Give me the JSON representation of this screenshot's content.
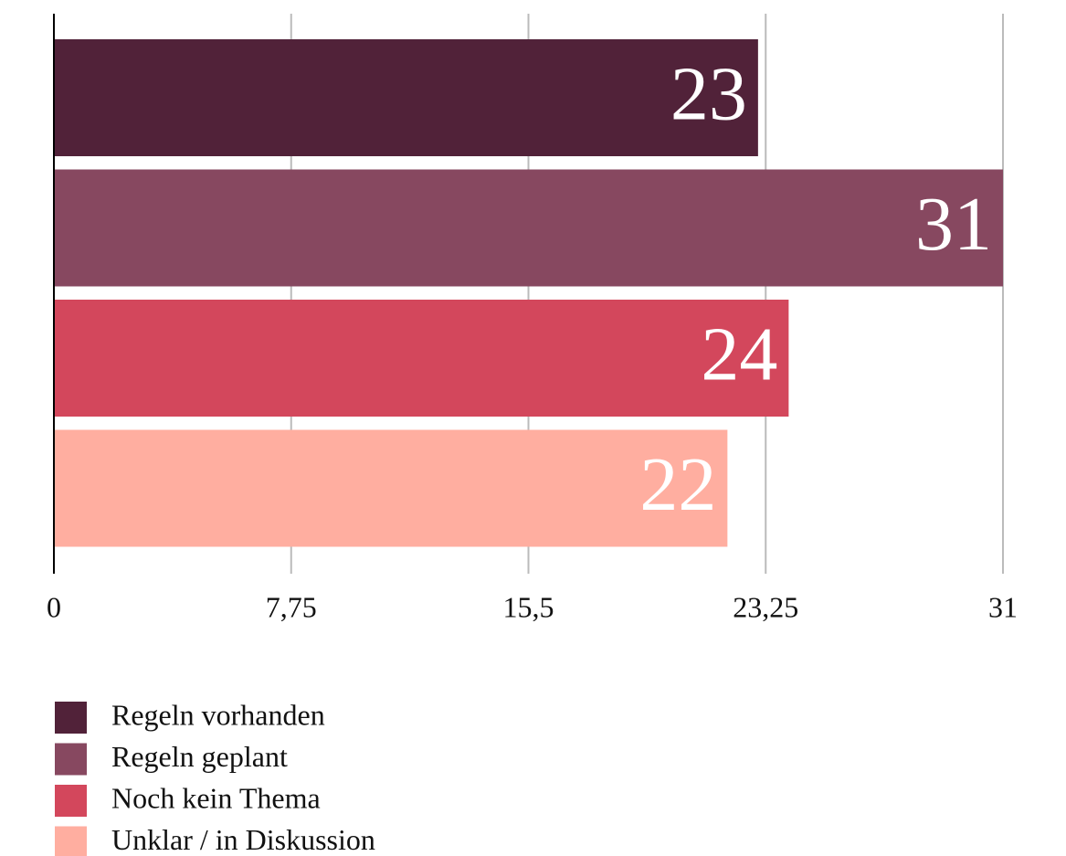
{
  "chart_data": {
    "type": "bar",
    "orientation": "horizontal",
    "series": [
      {
        "name": "Regeln vorhanden",
        "color": "#512239",
        "values": [
          23
        ]
      },
      {
        "name": "Regeln geplant",
        "color": "#874860",
        "values": [
          31
        ]
      },
      {
        "name": "Noch kein Thema",
        "color": "#d3475c",
        "values": [
          24
        ]
      },
      {
        "name": "Unklar / in Diskussion",
        "color": "#ffaea0",
        "values": [
          22
        ]
      }
    ],
    "xlim": [
      0,
      31
    ],
    "xticks": [
      0,
      {
        "value": 7.75,
        "label": "7,75"
      },
      {
        "value": 15.5,
        "label": "15,5"
      },
      {
        "value": 23.25,
        "label": "23,25"
      },
      31
    ],
    "grid": true,
    "legend": "bottom-left"
  }
}
